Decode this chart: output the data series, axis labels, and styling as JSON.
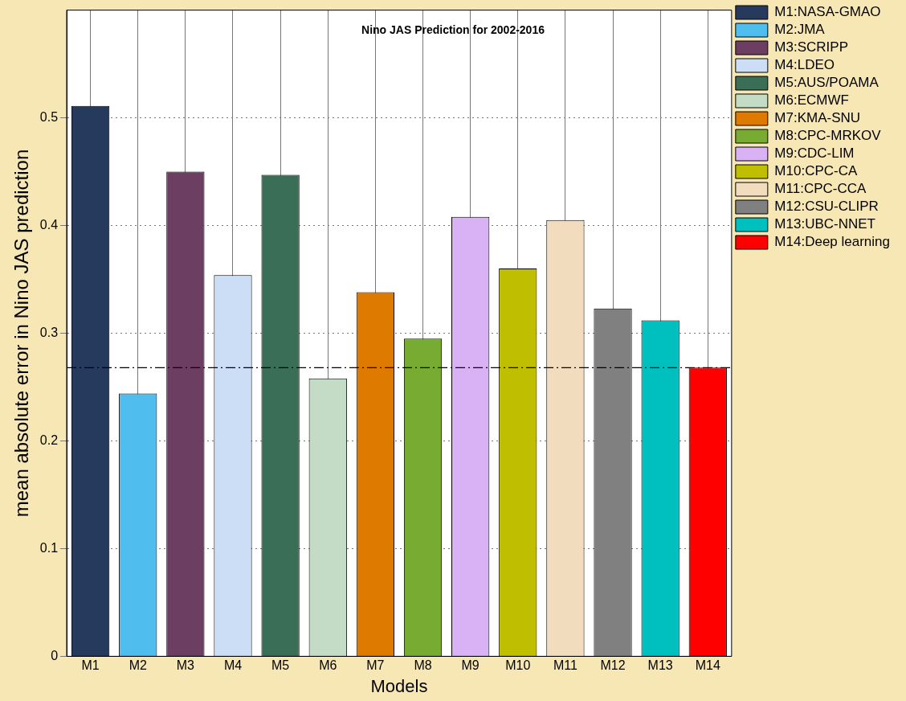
{
  "chart_data": {
    "type": "bar",
    "title": "Nino JAS Prediction for 2002-2016",
    "xlabel": "Models",
    "ylabel": "mean absolute error in Nino JAS prediction",
    "categories": [
      "M1",
      "M2",
      "M3",
      "M4",
      "M5",
      "M6",
      "M7",
      "M8",
      "M9",
      "M10",
      "M11",
      "M12",
      "M13",
      "M14"
    ],
    "series": [
      {
        "name": "M1:NASA-GMAO",
        "color": "#263a5e",
        "values": [
          0.511,
          null,
          null,
          null,
          null,
          null,
          null,
          null,
          null,
          null,
          null,
          null,
          null,
          null
        ]
      },
      {
        "name": "M2:JMA",
        "color": "#4fbdee",
        "values": [
          null,
          0.244,
          null,
          null,
          null,
          null,
          null,
          null,
          null,
          null,
          null,
          null,
          null,
          null
        ]
      },
      {
        "name": "M3:SCRIPP",
        "color": "#6b3e62",
        "values": [
          null,
          null,
          0.45,
          null,
          null,
          null,
          null,
          null,
          null,
          null,
          null,
          null,
          null,
          null
        ]
      },
      {
        "name": "M4:LDEO",
        "color": "#cbdef5",
        "values": [
          null,
          null,
          null,
          0.354,
          null,
          null,
          null,
          null,
          null,
          null,
          null,
          null,
          null,
          null
        ]
      },
      {
        "name": "M5:AUS/POAMA",
        "color": "#3a6e57",
        "values": [
          null,
          null,
          null,
          null,
          0.447,
          null,
          null,
          null,
          null,
          null,
          null,
          null,
          null,
          null
        ]
      },
      {
        "name": "M6:ECMWF",
        "color": "#c4dcc6",
        "values": [
          null,
          null,
          null,
          null,
          null,
          0.258,
          null,
          null,
          null,
          null,
          null,
          null,
          null,
          null
        ]
      },
      {
        "name": "M7:KMA-SNU",
        "color": "#de7a00",
        "values": [
          null,
          null,
          null,
          null,
          null,
          null,
          0.338,
          null,
          null,
          null,
          null,
          null,
          null,
          null
        ]
      },
      {
        "name": "M8:CPC-MRKOV",
        "color": "#78ab32",
        "values": [
          null,
          null,
          null,
          null,
          null,
          null,
          null,
          0.295,
          null,
          null,
          null,
          null,
          null,
          null
        ]
      },
      {
        "name": "M9:CDC-LIM",
        "color": "#d9b1f5",
        "values": [
          null,
          null,
          null,
          null,
          null,
          null,
          null,
          null,
          0.408,
          null,
          null,
          null,
          null,
          null
        ]
      },
      {
        "name": "M10:CPC-CA",
        "color": "#c0be00",
        "values": [
          null,
          null,
          null,
          null,
          null,
          null,
          null,
          null,
          null,
          0.36,
          null,
          null,
          null,
          null
        ]
      },
      {
        "name": "M11:CPC-CCA",
        "color": "#f1dcbe",
        "values": [
          null,
          null,
          null,
          null,
          null,
          null,
          null,
          null,
          null,
          null,
          0.405,
          null,
          null,
          null
        ]
      },
      {
        "name": "M12:CSU-CLIPR",
        "color": "#808080",
        "values": [
          null,
          null,
          null,
          null,
          null,
          null,
          null,
          null,
          null,
          null,
          null,
          0.323,
          null,
          null
        ]
      },
      {
        "name": "M13:UBC-NNET",
        "color": "#00bfbf",
        "values": [
          null,
          null,
          null,
          null,
          null,
          null,
          null,
          null,
          null,
          null,
          null,
          null,
          0.312,
          null
        ]
      },
      {
        "name": "M14:Deep learning",
        "color": "#ff0000",
        "values": [
          null,
          null,
          null,
          null,
          null,
          null,
          null,
          null,
          null,
          null,
          null,
          null,
          null,
          0.268
        ]
      }
    ],
    "ylim": [
      0,
      0.6
    ],
    "yticks": [
      0,
      0.1,
      0.2,
      0.3,
      0.4,
      0.5
    ],
    "grid": true,
    "legend": "top right",
    "ref_lines": [
      {
        "axis": "y",
        "value": 0.268,
        "line_style": "dashdot",
        "color": "#000000"
      }
    ]
  }
}
